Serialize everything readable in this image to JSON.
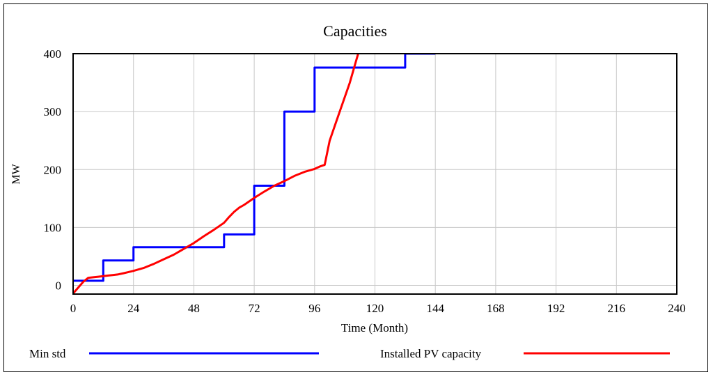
{
  "chart_data": {
    "type": "line",
    "title": "Capacities",
    "xlabel": "Time (Month)",
    "ylabel": "MW",
    "xlim": [
      0,
      240
    ],
    "ylim": [
      -15,
      400
    ],
    "x_ticks": [
      0,
      24,
      48,
      72,
      96,
      120,
      144,
      168,
      192,
      216,
      240
    ],
    "y_ticks": [
      0,
      100,
      200,
      300,
      400
    ],
    "grid": true,
    "legend_position": "bottom",
    "series": [
      {
        "name": "Min std",
        "color": "#0000ff",
        "x": [
          0,
          12,
          12,
          24,
          24,
          60,
          60,
          72,
          72,
          84,
          84,
          96,
          96,
          132,
          132,
          144
        ],
        "y": [
          8,
          8,
          43,
          43,
          66,
          66,
          88,
          88,
          172,
          172,
          300,
          300,
          376,
          376,
          400,
          400
        ]
      },
      {
        "name": "Installed PV capacity",
        "color": "#ff0000",
        "x": [
          0,
          2,
          4,
          6,
          8,
          10,
          12,
          14,
          16,
          18,
          20,
          22,
          24,
          28,
          32,
          36,
          40,
          44,
          48,
          52,
          56,
          60,
          62,
          64,
          66,
          68,
          72,
          76,
          80,
          84,
          88,
          92,
          96,
          98,
          100,
          102,
          104,
          106,
          108,
          110,
          112,
          114
        ],
        "y": [
          -14,
          -4,
          6,
          13,
          14,
          15,
          16,
          17,
          18,
          19,
          21,
          23,
          25,
          30,
          37,
          45,
          53,
          63,
          73,
          85,
          96,
          108,
          118,
          127,
          134,
          139,
          151,
          162,
          172,
          180,
          189,
          196,
          201,
          205,
          208,
          250,
          275,
          300,
          325,
          350,
          380,
          410
        ]
      }
    ]
  }
}
